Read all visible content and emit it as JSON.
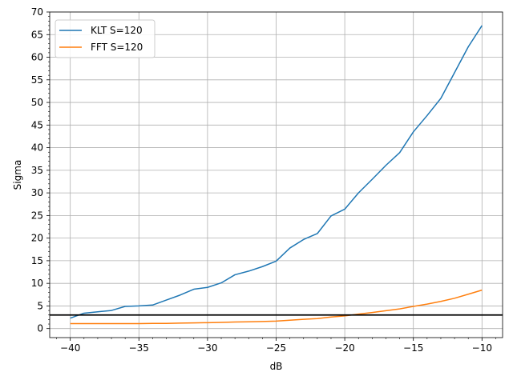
{
  "chart_data": {
    "type": "line",
    "title": "",
    "xlabel": "dB",
    "ylabel": "Sigma",
    "xlim": [
      -41.5,
      -8.5
    ],
    "ylim": [
      -2,
      70
    ],
    "xticks": [
      -40,
      -35,
      -30,
      -25,
      -20,
      -15,
      -10
    ],
    "xtick_labels": [
      "−40",
      "−35",
      "−30",
      "−25",
      "−20",
      "−15",
      "−10"
    ],
    "yticks": [
      0,
      5,
      10,
      15,
      20,
      25,
      30,
      35,
      40,
      45,
      50,
      55,
      60,
      65,
      70
    ],
    "ytick_labels": [
      "0",
      "5",
      "10",
      "15",
      "20",
      "25",
      "30",
      "35",
      "40",
      "45",
      "50",
      "55",
      "60",
      "65",
      "70"
    ],
    "grid": true,
    "legend_position": "top-left",
    "x": [
      -40,
      -39,
      -38,
      -37,
      -36,
      -35,
      -34,
      -33,
      -32,
      -31,
      -30,
      -29,
      -28,
      -27,
      -26,
      -25,
      -24,
      -23,
      -22,
      -21,
      -20,
      -19,
      -18,
      -17,
      -16,
      -15,
      -14,
      -13,
      -12,
      -11,
      -10
    ],
    "series": [
      {
        "name": "KLT S=120",
        "color": "#1f77b4",
        "values": [
          2.3,
          3.4,
          3.7,
          4.0,
          4.9,
          5.0,
          5.2,
          6.3,
          7.4,
          8.7,
          9.1,
          10.1,
          11.9,
          12.7,
          13.7,
          14.9,
          17.8,
          19.7,
          21.0,
          24.9,
          26.4,
          30.0,
          33.0,
          36.1,
          38.9,
          43.5,
          47.1,
          50.9,
          56.6,
          62.3,
          67.0
        ]
      },
      {
        "name": "FFT S=120",
        "color": "#ff7f0e",
        "values": [
          1.1,
          1.1,
          1.1,
          1.1,
          1.1,
          1.1,
          1.15,
          1.15,
          1.2,
          1.25,
          1.3,
          1.35,
          1.45,
          1.5,
          1.55,
          1.65,
          1.85,
          2.05,
          2.2,
          2.55,
          2.8,
          3.2,
          3.55,
          3.95,
          4.35,
          4.9,
          5.4,
          6.0,
          6.7,
          7.6,
          8.5
        ]
      }
    ],
    "reference_line": {
      "y": 3,
      "color": "#000000"
    }
  }
}
